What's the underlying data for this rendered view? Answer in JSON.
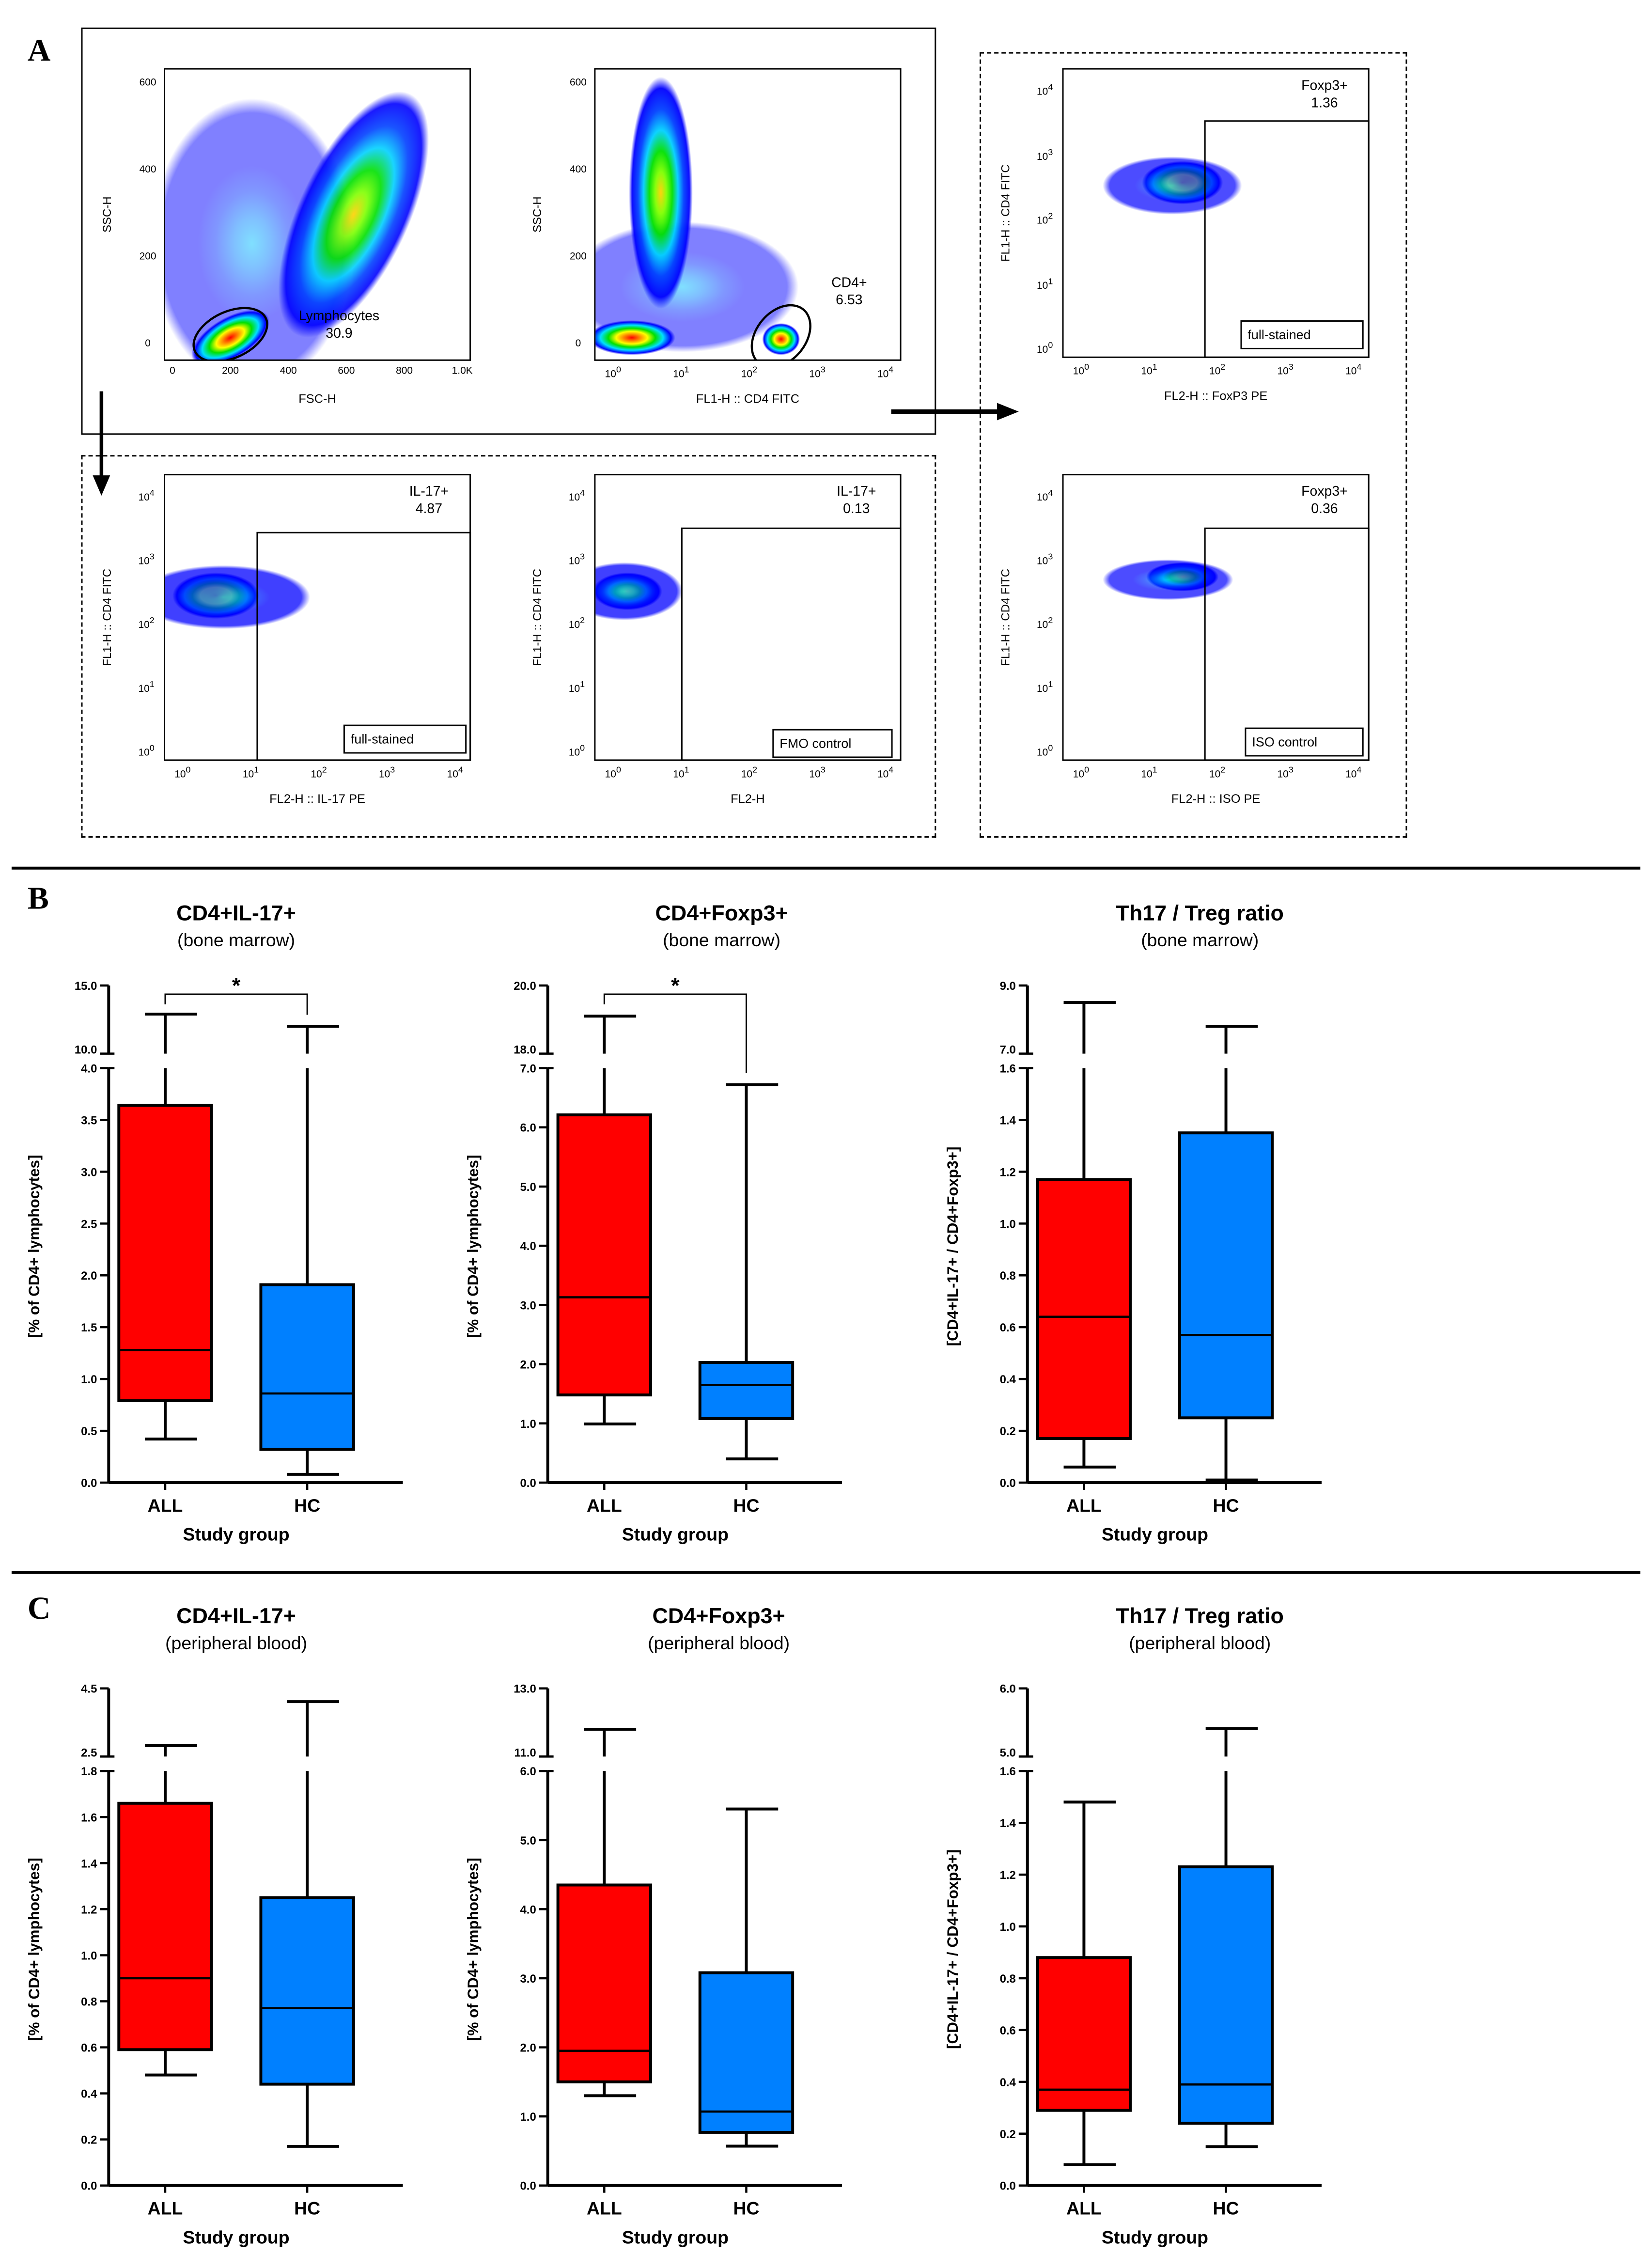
{
  "panels": {
    "a": "A",
    "b": "B",
    "c": "C"
  },
  "flow": {
    "log_base": "10",
    "log_exponents": [
      "0",
      "1",
      "2",
      "3",
      "4"
    ],
    "plots": [
      {
        "id": "fsc-ssc",
        "ylabel": "SSC-H",
        "xlabel": "FSC-H",
        "xscale": "linear",
        "yscale": "linear",
        "xticks": [
          "0",
          "200",
          "400",
          "600",
          "800",
          "1.0K"
        ],
        "yticks": [
          "0",
          "200",
          "400",
          "600"
        ],
        "gate_name": "Lymphocytes",
        "gate_value": "30.9"
      },
      {
        "id": "cd4-ssc",
        "ylabel": "SSC-H",
        "xlabel": "FL1-H :: CD4 FITC",
        "xscale": "log",
        "yscale": "linear",
        "yticks": [
          "0",
          "200",
          "400",
          "600"
        ],
        "gate_name": "CD4+",
        "gate_value": "6.53"
      },
      {
        "id": "foxp3-full",
        "ylabel": "FL1-H :: CD4 FITC",
        "xlabel": "FL2-H :: FoxP3 PE",
        "xscale": "log",
        "yscale": "log",
        "gate_name": "Foxp3+",
        "gate_value": "1.36",
        "tag": "full-stained"
      },
      {
        "id": "foxp3-iso",
        "ylabel": "FL1-H :: CD4 FITC",
        "xlabel": "FL2-H :: ISO PE",
        "xscale": "log",
        "yscale": "log",
        "gate_name": "Foxp3+",
        "gate_value": "0.36",
        "tag": "ISO control"
      },
      {
        "id": "il17-full",
        "ylabel": "FL1-H :: CD4 FITC",
        "xlabel": "FL2-H :: IL-17 PE",
        "xscale": "log",
        "yscale": "log",
        "gate_name": "IL-17+",
        "gate_value": "4.87",
        "tag": "full-stained"
      },
      {
        "id": "il17-fmo",
        "ylabel": "FL1-H :: CD4 FITC",
        "xlabel": "FL2-H",
        "xscale": "log",
        "yscale": "log",
        "gate_name": "IL-17+",
        "gate_value": "0.13",
        "tag": "FMO control"
      }
    ]
  },
  "colors": {
    "ALL": "#ff0000",
    "HC": "#0080ff"
  },
  "chart_data": [
    {
      "type": "box",
      "panel": "B",
      "title": "CD4+IL-17+",
      "subtitle": "(bone marrow)",
      "ylabel": "[% of CD4+ lymphocytes]",
      "xlabel": "Study group",
      "categories": [
        "ALL",
        "HC"
      ],
      "y_lower": [
        0,
        4
      ],
      "y_upper": [
        10,
        15
      ],
      "lower_ticks": [
        "0.0",
        "0.5",
        "1.0",
        "1.5",
        "2.0",
        "2.5",
        "3.0",
        "3.5",
        "4.0"
      ],
      "upper_ticks": [
        "10.0",
        "15.0"
      ],
      "boxes": [
        {
          "min": 0.42,
          "q1": 0.79,
          "median": 1.28,
          "q3": 3.64,
          "max": 12.9
        },
        {
          "min": 0.08,
          "q1": 0.32,
          "median": 0.86,
          "q3": 1.91,
          "max": 12.0
        }
      ],
      "significance": "*"
    },
    {
      "type": "box",
      "panel": "B",
      "title": "CD4+Foxp3+",
      "subtitle": "(bone marrow)",
      "ylabel": "[% of CD4+ lymphocytes]",
      "xlabel": "Study group",
      "categories": [
        "ALL",
        "HC"
      ],
      "y_lower": [
        0,
        7
      ],
      "y_upper": [
        18,
        20
      ],
      "lower_ticks": [
        "0.0",
        "1.0",
        "2.0",
        "3.0",
        "4.0",
        "5.0",
        "6.0",
        "7.0"
      ],
      "upper_ticks": [
        "18.0",
        "20.0"
      ],
      "boxes": [
        {
          "min": 0.99,
          "q1": 1.48,
          "median": 3.13,
          "q3": 6.21,
          "max": 19.1
        },
        {
          "min": 0.4,
          "q1": 1.08,
          "median": 1.65,
          "q3": 2.03,
          "max": 6.72
        }
      ],
      "significance": "*"
    },
    {
      "type": "box",
      "panel": "B",
      "title": "Th17 / Treg ratio",
      "subtitle": "(bone marrow)",
      "ylabel": "[CD4+IL-17+ / CD4+Foxp3+]",
      "xlabel": "Study group",
      "categories": [
        "ALL",
        "HC"
      ],
      "y_lower": [
        0,
        1.6
      ],
      "y_upper": [
        7,
        9
      ],
      "lower_ticks": [
        "0.0",
        "0.2",
        "0.4",
        "0.6",
        "0.8",
        "1.0",
        "1.2",
        "1.4",
        "1.6"
      ],
      "upper_ticks": [
        "7.0",
        "9.0"
      ],
      "boxes": [
        {
          "min": 0.06,
          "q1": 0.17,
          "median": 0.64,
          "q3": 1.17,
          "max": 8.5
        },
        {
          "min": 0.01,
          "q1": 0.25,
          "median": 0.57,
          "q3": 1.35,
          "max": 7.8
        }
      ]
    },
    {
      "type": "box",
      "panel": "C",
      "title": "CD4+IL-17+",
      "subtitle": "(peripheral blood)",
      "ylabel": "[% of CD4+ lymphocytes]",
      "xlabel": "Study group",
      "categories": [
        "ALL",
        "HC"
      ],
      "y_lower": [
        0,
        1.8
      ],
      "y_upper": [
        2.5,
        4.5
      ],
      "lower_ticks": [
        "0.0",
        "0.2",
        "0.4",
        "0.6",
        "0.8",
        "1.0",
        "1.2",
        "1.4",
        "1.6",
        "1.8"
      ],
      "upper_ticks": [
        "2.5",
        "4.5"
      ],
      "boxes": [
        {
          "min": 0.48,
          "q1": 0.59,
          "median": 0.9,
          "q3": 1.66,
          "max": 2.82
        },
        {
          "min": 0.17,
          "q1": 0.44,
          "median": 0.77,
          "q3": 1.25,
          "max": 4.11
        }
      ]
    },
    {
      "type": "box",
      "panel": "C",
      "title": "CD4+Foxp3+",
      "subtitle": "(peripheral blood)",
      "ylabel": "[% of CD4+ lymphocytes]",
      "xlabel": "Study group",
      "categories": [
        "ALL",
        "HC"
      ],
      "y_lower": [
        0,
        6
      ],
      "y_upper": [
        11,
        13
      ],
      "lower_ticks": [
        "0.0",
        "1.0",
        "2.0",
        "3.0",
        "4.0",
        "5.0",
        "6.0"
      ],
      "upper_ticks": [
        "11.0",
        "13.0"
      ],
      "boxes": [
        {
          "min": 1.3,
          "q1": 1.5,
          "median": 1.95,
          "q3": 4.35,
          "max": 11.8
        },
        {
          "min": 0.57,
          "q1": 0.77,
          "median": 1.07,
          "q3": 3.08,
          "max": 5.45
        }
      ]
    },
    {
      "type": "box",
      "panel": "C",
      "title": "Th17 / Treg ratio",
      "subtitle": "(peripheral blood)",
      "ylabel": "[CD4+IL-17+ / CD4+Foxp3+]",
      "xlabel": "Study group",
      "categories": [
        "ALL",
        "HC"
      ],
      "y_lower": [
        0,
        1.6
      ],
      "y_upper": [
        5,
        6
      ],
      "lower_ticks": [
        "0.0",
        "0.2",
        "0.4",
        "0.6",
        "0.8",
        "1.0",
        "1.2",
        "1.4",
        "1.6"
      ],
      "upper_ticks": [
        "5.0",
        "6.0"
      ],
      "boxes": [
        {
          "min": 0.08,
          "q1": 0.29,
          "median": 0.37,
          "q3": 0.88,
          "max": 1.48
        },
        {
          "min": 0.15,
          "q1": 0.24,
          "median": 0.39,
          "q3": 1.23,
          "max": 5.41
        }
      ]
    }
  ]
}
